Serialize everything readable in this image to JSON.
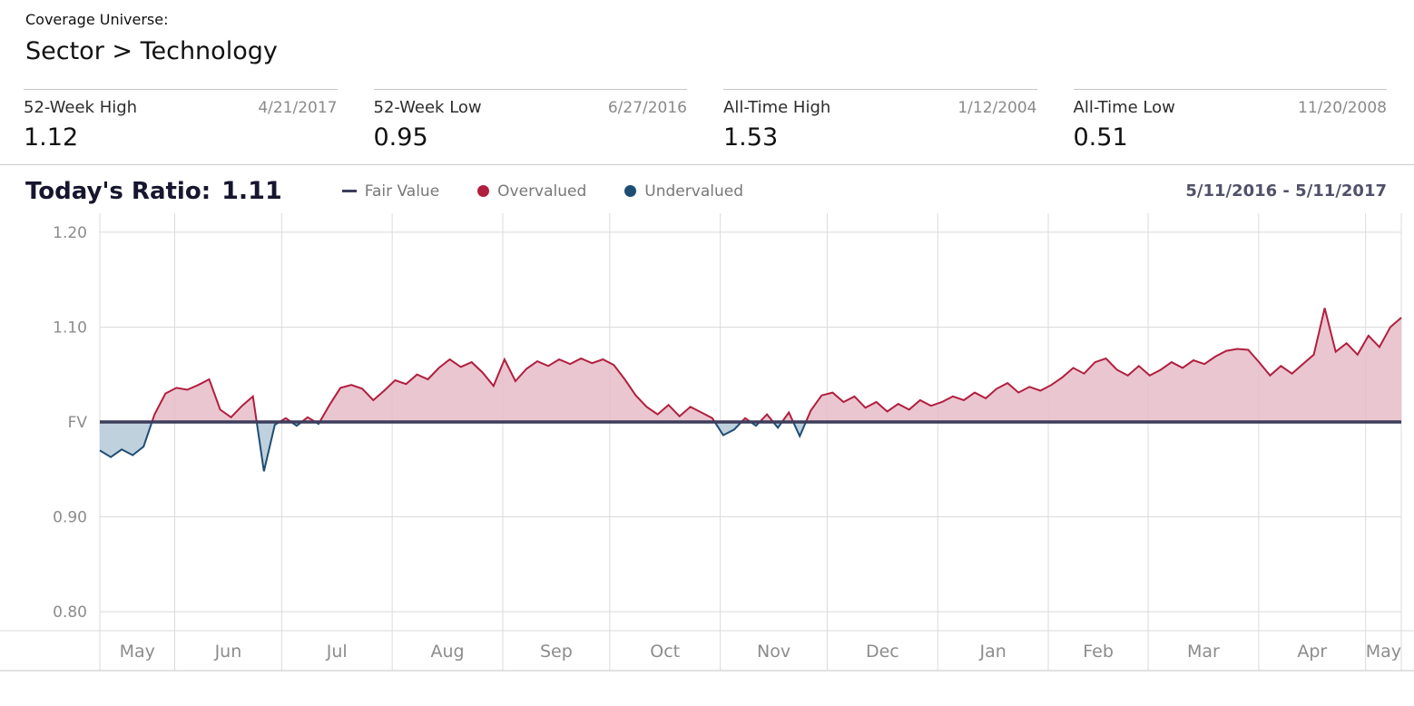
{
  "page": {
    "coverage_universe_label": "Coverage Universe:",
    "coverage_universe_value": "Sector > Technology"
  },
  "stats": [
    {
      "label": "52-Week High",
      "date": "4/21/2017",
      "value": "1.12"
    },
    {
      "label": "52-Week Low",
      "date": "6/27/2016",
      "value": "0.95"
    },
    {
      "label": "All-Time High",
      "date": "1/12/2004",
      "value": "1.53"
    },
    {
      "label": "All-Time Low",
      "date": "11/20/2008",
      "value": "0.51"
    }
  ],
  "chart_header": {
    "title_label": "Today's Ratio:",
    "title_value": "1.11",
    "date_range": "5/11/2016 - 5/11/2017",
    "legend": [
      {
        "label": "Fair Value",
        "marker": "line",
        "color": "#3d3d5c"
      },
      {
        "label": "Overvalued",
        "marker": "circle",
        "color": "#b11f3f"
      },
      {
        "label": "Undervalued",
        "marker": "circle",
        "color": "#1e4d74"
      }
    ]
  },
  "chart_data": {
    "type": "area",
    "title": "Today's Ratio",
    "subtitle": "Price to Fair Value ratio vs FV baseline",
    "date_range": "5/11/2016 - 5/11/2017",
    "baseline": {
      "label": "FV",
      "value": 1.0
    },
    "ylim": [
      0.78,
      1.22
    ],
    "yticks": [
      {
        "value": 1.2,
        "label": "1.20"
      },
      {
        "value": 1.1,
        "label": "1.10"
      },
      {
        "value": 1.0,
        "label": "FV"
      },
      {
        "value": 0.9,
        "label": "0.90"
      },
      {
        "value": 0.8,
        "label": "0.80"
      }
    ],
    "grid": true,
    "legend_position": "top",
    "total_days": 365,
    "months": [
      {
        "label": "May",
        "start": 0,
        "end": 21
      },
      {
        "label": "Jun",
        "start": 21,
        "end": 51
      },
      {
        "label": "Jul",
        "start": 51,
        "end": 82
      },
      {
        "label": "Aug",
        "start": 82,
        "end": 113
      },
      {
        "label": "Sep",
        "start": 113,
        "end": 143
      },
      {
        "label": "Oct",
        "start": 143,
        "end": 174
      },
      {
        "label": "Nov",
        "start": 174,
        "end": 204
      },
      {
        "label": "Dec",
        "start": 204,
        "end": 235
      },
      {
        "label": "Jan",
        "start": 235,
        "end": 266
      },
      {
        "label": "Feb",
        "start": 266,
        "end": 294
      },
      {
        "label": "Mar",
        "start": 294,
        "end": 325
      },
      {
        "label": "Apr",
        "start": 325,
        "end": 355
      },
      {
        "label": "May",
        "start": 355,
        "end": 365
      }
    ],
    "series": [
      {
        "name": "Ratio",
        "values": [
          0.97,
          0.963,
          0.971,
          0.965,
          0.974,
          1.008,
          1.03,
          1.036,
          1.034,
          1.039,
          1.045,
          1.013,
          1.005,
          1.017,
          1.027,
          0.948,
          0.997,
          1.004,
          0.996,
          1.005,
          0.998,
          1.018,
          1.036,
          1.039,
          1.035,
          1.023,
          1.033,
          1.044,
          1.04,
          1.05,
          1.045,
          1.057,
          1.066,
          1.058,
          1.063,
          1.052,
          1.038,
          1.066,
          1.043,
          1.056,
          1.064,
          1.059,
          1.066,
          1.061,
          1.067,
          1.062,
          1.066,
          1.06,
          1.045,
          1.028,
          1.016,
          1.008,
          1.018,
          1.006,
          1.016,
          1.01,
          1.004,
          0.986,
          0.992,
          1.004,
          0.996,
          1.008,
          0.994,
          1.01,
          0.985,
          1.012,
          1.028,
          1.031,
          1.021,
          1.027,
          1.015,
          1.021,
          1.011,
          1.019,
          1.013,
          1.023,
          1.017,
          1.021,
          1.027,
          1.023,
          1.031,
          1.025,
          1.035,
          1.041,
          1.031,
          1.037,
          1.033,
          1.039,
          1.047,
          1.057,
          1.051,
          1.063,
          1.067,
          1.055,
          1.049,
          1.059,
          1.049,
          1.055,
          1.063,
          1.057,
          1.065,
          1.061,
          1.069,
          1.075,
          1.077,
          1.076,
          1.063,
          1.049,
          1.059,
          1.051,
          1.061,
          1.071,
          1.12,
          1.074,
          1.083,
          1.071,
          1.091,
          1.079,
          1.1,
          1.11
        ]
      }
    ],
    "colors": {
      "overvalued_line": "#b11f3f",
      "overvalued_fill": "#e6bcc8",
      "undervalued_line": "#1e4d74",
      "undervalued_fill": "#b4c9d7",
      "fair_value_line": "#3d3d5c",
      "grid": "#dbdbdb",
      "axis_label": "#8c8c8c"
    }
  }
}
